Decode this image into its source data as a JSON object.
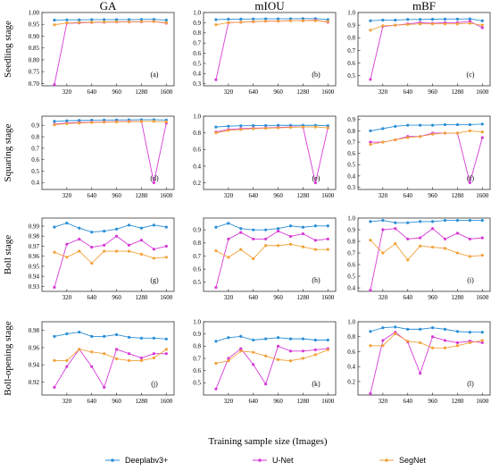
{
  "figure": {
    "x_axis_label": "Training sample size (Images)",
    "column_titles": [
      "GA",
      "mIOU",
      "mBF"
    ],
    "row_labels": [
      "Seedling stage",
      "Squaring stage",
      "Boll stage",
      "Boll-opening stage"
    ],
    "legend": [
      {
        "name": "Deeplabv3+",
        "color": "#2b8fd6"
      },
      {
        "name": "U-Net",
        "color": "#d63ad6"
      },
      {
        "name": "SegNet",
        "color": "#f2a23a"
      }
    ]
  },
  "chart_data": [
    {
      "type": "line",
      "panel_label": "(a)",
      "x": [
        160,
        320,
        480,
        640,
        800,
        960,
        1120,
        1280,
        1440,
        1600
      ],
      "xlim": [
        0,
        1700
      ],
      "ylim": [
        0.69,
        1.0
      ],
      "xticks": [
        320,
        640,
        960,
        1280,
        1600
      ],
      "yticks": [
        0.7,
        0.75,
        0.8,
        0.85,
        0.9,
        0.95,
        1.0
      ],
      "ytick_labels": [
        "0.70",
        "0.75",
        "0.80",
        "0.85",
        "0.90",
        "0.95",
        "1.00"
      ],
      "series": [
        {
          "name": "Deeplabv3+",
          "values": [
            0.968,
            0.969,
            0.969,
            0.97,
            0.97,
            0.97,
            0.97,
            0.971,
            0.971,
            0.968
          ]
        },
        {
          "name": "U-Net",
          "values": [
            0.695,
            0.955,
            0.956,
            0.958,
            0.959,
            0.96,
            0.96,
            0.961,
            0.962,
            0.955
          ]
        },
        {
          "name": "SegNet",
          "values": [
            0.948,
            0.956,
            0.958,
            0.959,
            0.96,
            0.961,
            0.961,
            0.962,
            0.962,
            0.957
          ]
        }
      ]
    },
    {
      "type": "line",
      "panel_label": "(b)",
      "x": [
        160,
        320,
        480,
        640,
        800,
        960,
        1120,
        1280,
        1440,
        1600
      ],
      "xlim": [
        0,
        1700
      ],
      "ylim": [
        0.28,
        1.0
      ],
      "xticks": [
        320,
        640,
        960,
        1280,
        1600
      ],
      "yticks": [
        0.3,
        0.4,
        0.5,
        0.6,
        0.7,
        0.8,
        0.9,
        1.0
      ],
      "ytick_labels": [
        "0.3",
        "0.4",
        "0.5",
        "0.6",
        "0.7",
        "0.8",
        "0.9",
        "1.0"
      ],
      "series": [
        {
          "name": "Deeplabv3+",
          "values": [
            0.93,
            0.935,
            0.935,
            0.937,
            0.938,
            0.938,
            0.939,
            0.94,
            0.94,
            0.93
          ]
        },
        {
          "name": "U-Net",
          "values": [
            0.34,
            0.9,
            0.905,
            0.91,
            0.915,
            0.915,
            0.92,
            0.92,
            0.925,
            0.905
          ]
        },
        {
          "name": "SegNet",
          "values": [
            0.88,
            0.9,
            0.905,
            0.91,
            0.915,
            0.915,
            0.92,
            0.92,
            0.92,
            0.91
          ]
        }
      ]
    },
    {
      "type": "line",
      "panel_label": "(c)",
      "x": [
        160,
        320,
        480,
        640,
        800,
        960,
        1120,
        1280,
        1440,
        1600
      ],
      "xlim": [
        0,
        1700
      ],
      "ylim": [
        0.42,
        1.0
      ],
      "xticks": [
        320,
        640,
        960,
        1280,
        1600
      ],
      "yticks": [
        0.5,
        0.6,
        0.7,
        0.8,
        0.9,
        1.0
      ],
      "ytick_labels": [
        "0.5",
        "0.6",
        "0.7",
        "0.8",
        "0.9",
        "1.0"
      ],
      "series": [
        {
          "name": "Deeplabv3+",
          "values": [
            0.935,
            0.94,
            0.94,
            0.945,
            0.945,
            0.947,
            0.948,
            0.948,
            0.95,
            0.935
          ]
        },
        {
          "name": "U-Net",
          "values": [
            0.47,
            0.89,
            0.9,
            0.91,
            0.92,
            0.915,
            0.92,
            0.92,
            0.93,
            0.88
          ]
        },
        {
          "name": "SegNet",
          "values": [
            0.86,
            0.895,
            0.9,
            0.905,
            0.91,
            0.91,
            0.91,
            0.91,
            0.915,
            0.9
          ]
        }
      ]
    },
    {
      "type": "line",
      "panel_label": "(d)",
      "x": [
        160,
        320,
        480,
        640,
        800,
        960,
        1120,
        1280,
        1440,
        1600
      ],
      "xlim": [
        0,
        1700
      ],
      "ylim": [
        0.34,
        0.98
      ],
      "xticks": [
        320,
        640,
        960,
        1280,
        1600
      ],
      "yticks": [
        0.4,
        0.5,
        0.6,
        0.7,
        0.8,
        0.9
      ],
      "ytick_labels": [
        "0.4",
        "0.5",
        "0.6",
        "0.7",
        "0.8",
        "0.9"
      ],
      "series": [
        {
          "name": "Deeplabv3+",
          "values": [
            0.935,
            0.94,
            0.943,
            0.945,
            0.946,
            0.947,
            0.948,
            0.949,
            0.949,
            0.946
          ]
        },
        {
          "name": "U-Net",
          "values": [
            0.91,
            0.92,
            0.925,
            0.928,
            0.93,
            0.932,
            0.935,
            0.935,
            0.4,
            0.92
          ]
        },
        {
          "name": "SegNet",
          "values": [
            0.905,
            0.915,
            0.92,
            0.925,
            0.928,
            0.93,
            0.932,
            0.935,
            0.935,
            0.93
          ]
        }
      ]
    },
    {
      "type": "line",
      "panel_label": "(e)",
      "x": [
        160,
        320,
        480,
        640,
        800,
        960,
        1120,
        1280,
        1440,
        1600
      ],
      "xlim": [
        0,
        1700
      ],
      "ylim": [
        0.12,
        1.0
      ],
      "xticks": [
        320,
        640,
        960,
        1280,
        1600
      ],
      "yticks": [
        0.2,
        0.4,
        0.6,
        0.8,
        1.0
      ],
      "ytick_labels": [
        "0.2",
        "0.4",
        "0.6",
        "0.8",
        "1.0"
      ],
      "series": [
        {
          "name": "Deeplabv3+",
          "values": [
            0.87,
            0.88,
            0.885,
            0.887,
            0.888,
            0.89,
            0.89,
            0.89,
            0.89,
            0.885
          ]
        },
        {
          "name": "U-Net",
          "values": [
            0.81,
            0.84,
            0.85,
            0.855,
            0.86,
            0.865,
            0.87,
            0.87,
            0.2,
            0.86
          ]
        },
        {
          "name": "SegNet",
          "values": [
            0.8,
            0.83,
            0.84,
            0.85,
            0.855,
            0.86,
            0.865,
            0.87,
            0.87,
            0.86
          ]
        }
      ]
    },
    {
      "type": "line",
      "panel_label": "(f)",
      "x": [
        160,
        320,
        480,
        640,
        800,
        960,
        1120,
        1280,
        1440,
        1600
      ],
      "xlim": [
        0,
        1700
      ],
      "ylim": [
        0.28,
        0.93
      ],
      "xticks": [
        320,
        640,
        960,
        1280,
        1600
      ],
      "yticks": [
        0.3,
        0.4,
        0.5,
        0.6,
        0.7,
        0.8,
        0.9
      ],
      "ytick_labels": [
        "0.3",
        "0.4",
        "0.5",
        "0.6",
        "0.7",
        "0.8",
        "0.9"
      ],
      "series": [
        {
          "name": "Deeplabv3+",
          "values": [
            0.8,
            0.82,
            0.84,
            0.85,
            0.85,
            0.85,
            0.855,
            0.855,
            0.855,
            0.86
          ]
        },
        {
          "name": "U-Net",
          "values": [
            0.7,
            0.7,
            0.72,
            0.75,
            0.75,
            0.78,
            0.78,
            0.78,
            0.34,
            0.74
          ]
        },
        {
          "name": "SegNet",
          "values": [
            0.68,
            0.7,
            0.72,
            0.74,
            0.75,
            0.77,
            0.78,
            0.78,
            0.8,
            0.79
          ]
        }
      ]
    },
    {
      "type": "line",
      "panel_label": "(g)",
      "x": [
        160,
        320,
        480,
        640,
        800,
        960,
        1120,
        1280,
        1440,
        1600
      ],
      "xlim": [
        0,
        1700
      ],
      "ylim": [
        0.925,
        0.998
      ],
      "xticks": [
        320,
        640,
        960,
        1280,
        1600
      ],
      "yticks": [
        0.93,
        0.94,
        0.95,
        0.96,
        0.97,
        0.98,
        0.99
      ],
      "ytick_labels": [
        "0.93",
        "0.94",
        "0.95",
        "0.96",
        "0.97",
        "0.98",
        "0.99"
      ],
      "series": [
        {
          "name": "Deeplabv3+",
          "values": [
            0.989,
            0.993,
            0.988,
            0.984,
            0.985,
            0.987,
            0.991,
            0.988,
            0.991,
            0.989
          ]
        },
        {
          "name": "U-Net",
          "values": [
            0.929,
            0.972,
            0.977,
            0.969,
            0.971,
            0.98,
            0.971,
            0.976,
            0.967,
            0.97
          ]
        },
        {
          "name": "SegNet",
          "values": [
            0.964,
            0.959,
            0.965,
            0.953,
            0.965,
            0.965,
            0.965,
            0.962,
            0.958,
            0.959
          ]
        }
      ]
    },
    {
      "type": "line",
      "panel_label": "(h)",
      "x": [
        160,
        320,
        480,
        640,
        800,
        960,
        1120,
        1280,
        1440,
        1600
      ],
      "xlim": [
        0,
        1700
      ],
      "ylim": [
        0.43,
        0.99
      ],
      "xticks": [
        320,
        640,
        960,
        1280,
        1600
      ],
      "yticks": [
        0.5,
        0.6,
        0.7,
        0.8,
        0.9
      ],
      "ytick_labels": [
        "0.5",
        "0.6",
        "0.7",
        "0.8",
        "0.9"
      ],
      "series": [
        {
          "name": "Deeplabv3+",
          "values": [
            0.92,
            0.95,
            0.91,
            0.9,
            0.9,
            0.91,
            0.93,
            0.92,
            0.93,
            0.93
          ]
        },
        {
          "name": "U-Net",
          "values": [
            0.46,
            0.83,
            0.88,
            0.83,
            0.83,
            0.89,
            0.85,
            0.87,
            0.82,
            0.83
          ]
        },
        {
          "name": "SegNet",
          "values": [
            0.74,
            0.69,
            0.75,
            0.68,
            0.78,
            0.78,
            0.79,
            0.77,
            0.75,
            0.75
          ]
        }
      ]
    },
    {
      "type": "line",
      "panel_label": "(i)",
      "x": [
        160,
        320,
        480,
        640,
        800,
        960,
        1120,
        1280,
        1440,
        1600
      ],
      "xlim": [
        0,
        1700
      ],
      "ylim": [
        0.37,
        1.0
      ],
      "xticks": [
        320,
        640,
        960,
        1280,
        1600
      ],
      "yticks": [
        0.4,
        0.5,
        0.6,
        0.7,
        0.8,
        0.9,
        1.0
      ],
      "ytick_labels": [
        "0.4",
        "0.5",
        "0.6",
        "0.7",
        "0.8",
        "0.9",
        "1.0"
      ],
      "series": [
        {
          "name": "Deeplabv3+",
          "values": [
            0.97,
            0.98,
            0.96,
            0.96,
            0.97,
            0.97,
            0.98,
            0.98,
            0.98,
            0.98
          ]
        },
        {
          "name": "U-Net",
          "values": [
            0.38,
            0.9,
            0.91,
            0.82,
            0.83,
            0.91,
            0.82,
            0.87,
            0.82,
            0.83
          ]
        },
        {
          "name": "SegNet",
          "values": [
            0.81,
            0.7,
            0.78,
            0.64,
            0.76,
            0.75,
            0.74,
            0.7,
            0.67,
            0.68
          ]
        }
      ]
    },
    {
      "type": "line",
      "panel_label": "(j)",
      "x": [
        160,
        320,
        480,
        640,
        800,
        960,
        1120,
        1280,
        1440,
        1600
      ],
      "xlim": [
        0,
        1700
      ],
      "ylim": [
        0.905,
        0.99
      ],
      "xticks": [
        320,
        640,
        960,
        1280,
        1600
      ],
      "yticks": [
        0.92,
        0.94,
        0.96,
        0.98
      ],
      "ytick_labels": [
        "0.92",
        "0.94",
        "0.96",
        "0.98"
      ],
      "series": [
        {
          "name": "Deeplabv3+",
          "values": [
            0.973,
            0.976,
            0.978,
            0.973,
            0.973,
            0.975,
            0.972,
            0.971,
            0.971,
            0.97
          ]
        },
        {
          "name": "U-Net",
          "values": [
            0.914,
            0.938,
            0.958,
            0.938,
            0.914,
            0.958,
            0.953,
            0.948,
            0.953,
            0.953
          ]
        },
        {
          "name": "SegNet",
          "values": [
            0.945,
            0.945,
            0.958,
            0.955,
            0.953,
            0.947,
            0.945,
            0.945,
            0.948,
            0.958
          ]
        }
      ]
    },
    {
      "type": "line",
      "panel_label": "(k)",
      "x": [
        160,
        320,
        480,
        640,
        800,
        960,
        1120,
        1280,
        1440,
        1600
      ],
      "xlim": [
        0,
        1700
      ],
      "ylim": [
        0.4,
        1.0
      ],
      "xticks": [
        320,
        640,
        960,
        1280,
        1600
      ],
      "yticks": [
        0.5,
        0.6,
        0.7,
        0.8,
        0.9,
        1.0
      ],
      "ytick_labels": [
        "0.5",
        "0.6",
        "0.7",
        "0.8",
        "0.9",
        "1.0"
      ],
      "series": [
        {
          "name": "Deeplabv3+",
          "values": [
            0.84,
            0.87,
            0.88,
            0.85,
            0.86,
            0.87,
            0.86,
            0.86,
            0.85,
            0.85
          ]
        },
        {
          "name": "U-Net",
          "values": [
            0.45,
            0.7,
            0.78,
            0.65,
            0.49,
            0.8,
            0.76,
            0.76,
            0.77,
            0.78
          ]
        },
        {
          "name": "SegNet",
          "values": [
            0.66,
            0.68,
            0.76,
            0.75,
            0.72,
            0.69,
            0.68,
            0.7,
            0.73,
            0.77
          ]
        }
      ]
    },
    {
      "type": "line",
      "panel_label": "(l)",
      "x": [
        160,
        320,
        480,
        640,
        800,
        960,
        1120,
        1280,
        1440,
        1600
      ],
      "xlim": [
        0,
        1700
      ],
      "ylim": [
        0.02,
        1.0
      ],
      "xticks": [
        320,
        640,
        960,
        1280,
        1600
      ],
      "yticks": [
        0.2,
        0.4,
        0.6,
        0.8,
        1.0
      ],
      "ytick_labels": [
        "0.2",
        "0.4",
        "0.6",
        "0.8",
        "1.0"
      ],
      "series": [
        {
          "name": "Deeplabv3+",
          "values": [
            0.87,
            0.92,
            0.93,
            0.9,
            0.9,
            0.92,
            0.9,
            0.87,
            0.86,
            0.86
          ]
        },
        {
          "name": "U-Net",
          "values": [
            0.04,
            0.75,
            0.86,
            0.73,
            0.31,
            0.8,
            0.75,
            0.72,
            0.74,
            0.72
          ]
        },
        {
          "name": "SegNet",
          "values": [
            0.68,
            0.68,
            0.84,
            0.74,
            0.72,
            0.65,
            0.65,
            0.68,
            0.72,
            0.75
          ]
        }
      ]
    }
  ]
}
